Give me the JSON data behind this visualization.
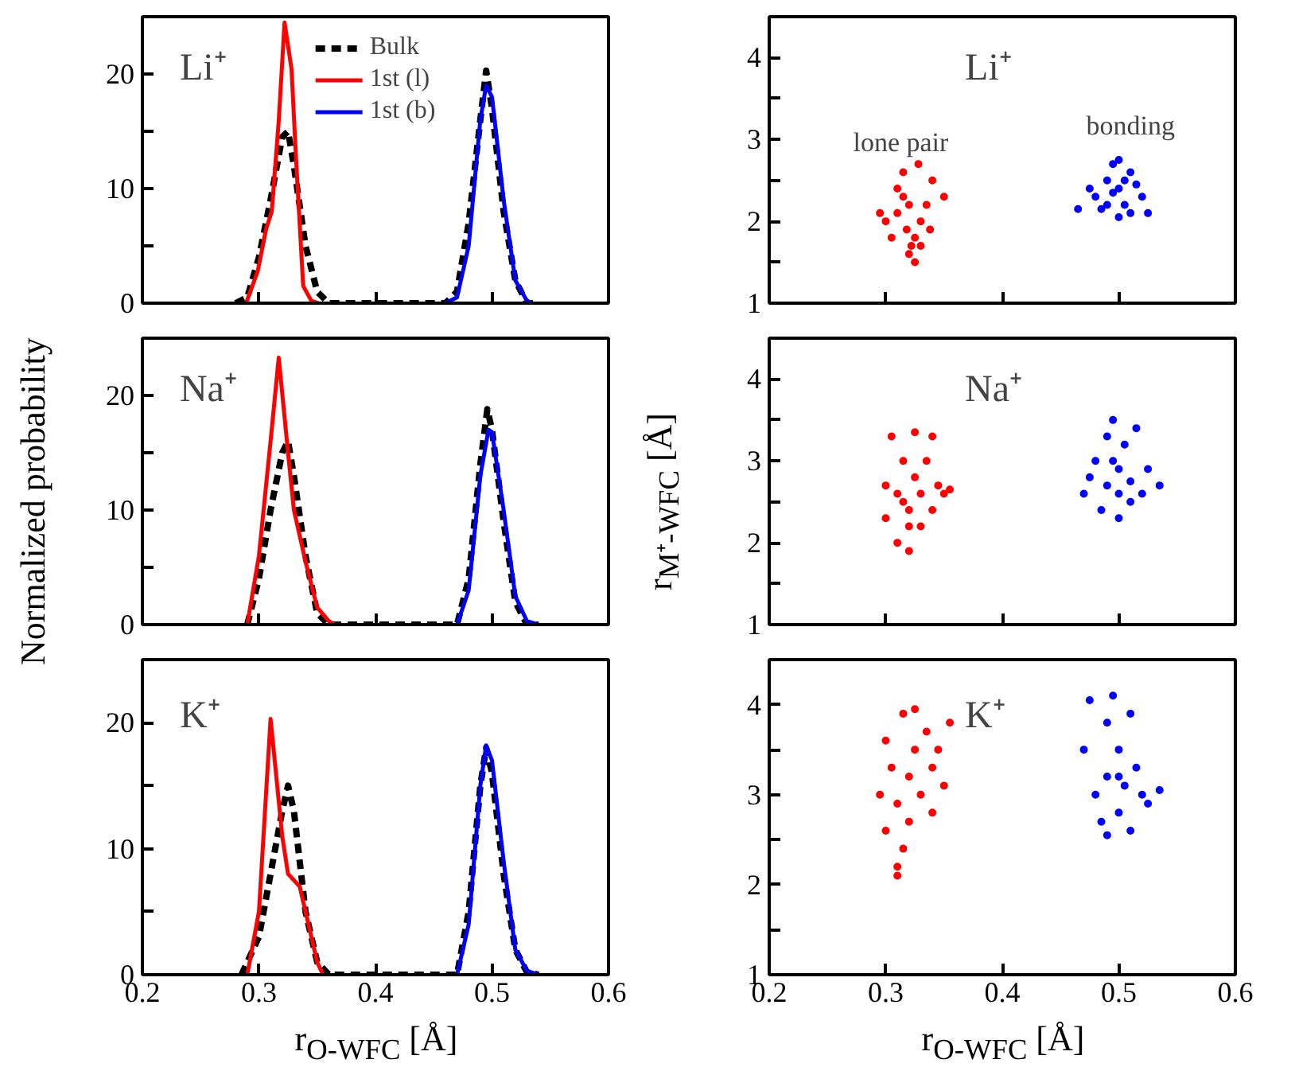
{
  "chart_data": [
    {
      "type": "line",
      "xlim": [
        0.2,
        0.6
      ],
      "ylim": [
        0,
        25
      ],
      "xticks": [
        0.2,
        0.3,
        0.4,
        0.5,
        0.6
      ],
      "yticks": [
        0,
        {
          "value": 5,
          "label": null
        },
        10,
        {
          "value": 15,
          "label": null
        },
        20
      ],
      "tick_labels": "y",
      "grid": false,
      "legend": "top",
      "annotations": [
        "Li⁺"
      ],
      "series": [
        {
          "name": "Bulk",
          "color": "#000000",
          "line_style": "dashed",
          "x": [
            0.28,
            0.29,
            0.3,
            0.31,
            0.32,
            0.325,
            0.33,
            0.34,
            0.35,
            0.36,
            0.37,
            0.46,
            0.47,
            0.48,
            0.49,
            0.495,
            0.5,
            0.51,
            0.52,
            0.53,
            0.54
          ],
          "values": [
            0,
            0.5,
            4,
            9,
            14.5,
            15,
            12,
            5,
            1,
            0,
            0,
            0,
            1,
            7,
            16,
            20.3,
            17,
            8,
            2,
            0,
            0
          ]
        },
        {
          "name": "1st (l)",
          "color": "#ff0000",
          "line_style": "solid",
          "x": [
            0.289,
            0.299,
            0.306,
            0.311,
            0.317,
            0.322,
            0.328,
            0.332,
            0.338,
            0.345,
            0.351
          ],
          "values": [
            0,
            2.8,
            6.4,
            8,
            15.9,
            24.5,
            20.4,
            12.3,
            1.5,
            0.2,
            0
          ]
        },
        {
          "name": "1st (b)",
          "color": "#0000ff",
          "line_style": "solid",
          "x": [
            0.46,
            0.47,
            0.48,
            0.49,
            0.495,
            0.5,
            0.51,
            0.52,
            0.53,
            0.535
          ],
          "values": [
            0,
            0.5,
            5,
            16,
            19,
            18,
            9,
            2,
            0.2,
            0
          ]
        }
      ]
    },
    {
      "type": "scatter",
      "xlim": [
        0.2,
        0.6
      ],
      "ylim": [
        1,
        4.5
      ],
      "xticks": [
        0.2,
        0.3,
        0.4,
        0.5,
        0.6
      ],
      "yticks": [
        1,
        {
          "value": 1.5,
          "label": null
        },
        2,
        {
          "value": 2.5,
          "label": null
        },
        3,
        {
          "value": 3.5,
          "label": null
        },
        4
      ],
      "tick_labels": "y",
      "grid": false,
      "marker": "circle",
      "annotations": [
        "Li⁺",
        "lone pair",
        "bonding"
      ],
      "series": [
        {
          "color": "#ff0000",
          "x": [
            0.3,
            0.31,
            0.315,
            0.32,
            0.325,
            0.32,
            0.33,
            0.335,
            0.34,
            0.328,
            0.305,
            0.31,
            0.318,
            0.322,
            0.33,
            0.295,
            0.325,
            0.35,
            0.315,
            0.338
          ],
          "values": [
            2.0,
            2.4,
            2.6,
            2.2,
            1.8,
            1.6,
            1.7,
            2.2,
            2.5,
            2.7,
            1.8,
            2.1,
            1.9,
            1.7,
            2.0,
            2.1,
            1.5,
            2.3,
            2.3,
            1.9
          ]
        },
        {
          "color": "#0000ff",
          "x": [
            0.465,
            0.48,
            0.49,
            0.495,
            0.5,
            0.505,
            0.51,
            0.52,
            0.525,
            0.5,
            0.485,
            0.51,
            0.515,
            0.49,
            0.5,
            0.475,
            0.495,
            0.505
          ],
          "values": [
            2.15,
            2.3,
            2.5,
            2.7,
            2.4,
            2.2,
            2.1,
            2.3,
            2.1,
            2.05,
            2.15,
            2.6,
            2.45,
            2.2,
            2.75,
            2.4,
            2.35,
            2.5
          ]
        }
      ]
    },
    {
      "type": "line",
      "xlim": [
        0.2,
        0.6
      ],
      "ylim": [
        0,
        25
      ],
      "xticks": [
        0.2,
        0.3,
        0.4,
        0.5,
        0.6
      ],
      "yticks": [
        0,
        {
          "value": 5,
          "label": null
        },
        10,
        {
          "value": 15,
          "label": null
        },
        20
      ],
      "tick_labels": "y",
      "grid": false,
      "ylabel": "Normalized probability",
      "annotations": [
        "Na⁺"
      ],
      "series": [
        {
          "color": "#000000",
          "line_style": "dashed",
          "x": [
            0.29,
            0.3,
            0.31,
            0.32,
            0.325,
            0.33,
            0.34,
            0.35,
            0.36,
            0.47,
            0.48,
            0.49,
            0.496,
            0.5,
            0.51,
            0.52,
            0.53,
            0.54
          ],
          "values": [
            0,
            4,
            10,
            15,
            16,
            13,
            6,
            1,
            0,
            0,
            4,
            14,
            18.8,
            17,
            9,
            2,
            0,
            0
          ]
        },
        {
          "color": "#ff0000",
          "line_style": "solid",
          "x": [
            0.29,
            0.3,
            0.31,
            0.317,
            0.325,
            0.33,
            0.34,
            0.35,
            0.36,
            0.365
          ],
          "values": [
            0,
            6,
            16,
            23.3,
            15,
            10,
            5.5,
            1.5,
            0.3,
            0
          ]
        },
        {
          "color": "#0000ff",
          "line_style": "solid",
          "x": [
            0.47,
            0.48,
            0.49,
            0.497,
            0.5,
            0.51,
            0.52,
            0.53,
            0.54
          ],
          "values": [
            0,
            3,
            13,
            17,
            16.8,
            10,
            2.5,
            0.3,
            0
          ]
        }
      ]
    },
    {
      "type": "scatter",
      "xlim": [
        0.2,
        0.6
      ],
      "ylim": [
        1,
        4.5
      ],
      "xticks": [
        0.2,
        0.3,
        0.4,
        0.5,
        0.6
      ],
      "yticks": [
        1,
        {
          "value": 1.5,
          "label": null
        },
        2,
        {
          "value": 2.5,
          "label": null
        },
        3,
        {
          "value": 3.5,
          "label": null
        },
        4
      ],
      "tick_labels": "y",
      "grid": false,
      "marker": "circle",
      "ylabel": "r$_{M⁺-WFC}$ [Å]",
      "annotations": [
        "Na⁺"
      ],
      "series": [
        {
          "color": "#ff0000",
          "x": [
            0.3,
            0.3,
            0.305,
            0.31,
            0.315,
            0.315,
            0.32,
            0.32,
            0.325,
            0.325,
            0.33,
            0.33,
            0.335,
            0.34,
            0.345,
            0.35,
            0.355,
            0.31,
            0.32,
            0.34
          ],
          "values": [
            2.7,
            2.3,
            3.3,
            2.0,
            2.5,
            3.0,
            1.9,
            2.4,
            2.8,
            3.35,
            2.2,
            2.6,
            3.0,
            2.4,
            2.7,
            2.6,
            2.65,
            2.6,
            2.2,
            3.3
          ]
        },
        {
          "color": "#0000ff",
          "x": [
            0.47,
            0.475,
            0.48,
            0.485,
            0.49,
            0.49,
            0.495,
            0.5,
            0.5,
            0.505,
            0.51,
            0.51,
            0.515,
            0.52,
            0.525,
            0.535,
            0.5,
            0.495
          ],
          "values": [
            2.6,
            2.8,
            3.0,
            2.4,
            3.3,
            2.7,
            3.5,
            2.3,
            2.9,
            3.2,
            2.5,
            2.75,
            3.4,
            2.6,
            2.9,
            2.7,
            2.6,
            3.0
          ]
        }
      ]
    },
    {
      "type": "line",
      "xlim": [
        0.2,
        0.6
      ],
      "ylim": [
        0,
        25
      ],
      "xticks": [
        0.2,
        0.3,
        0.4,
        0.5,
        0.6
      ],
      "yticks": [
        0,
        {
          "value": 5,
          "label": null
        },
        10,
        {
          "value": 15,
          "label": null
        },
        20
      ],
      "grid": false,
      "xlabel": "r$_{O-WFC}$ [Å]",
      "annotations": [
        "K⁺"
      ],
      "series": [
        {
          "color": "#000000",
          "line_style": "dashed",
          "x": [
            0.285,
            0.3,
            0.31,
            0.32,
            0.325,
            0.33,
            0.34,
            0.35,
            0.36,
            0.47,
            0.48,
            0.49,
            0.495,
            0.5,
            0.51,
            0.52,
            0.53,
            0.54
          ],
          "values": [
            0,
            3,
            8,
            13,
            15,
            13,
            5,
            1,
            0,
            0,
            5,
            15,
            18,
            16,
            8,
            2,
            0.2,
            0
          ]
        },
        {
          "color": "#ff0000",
          "line_style": "solid",
          "x": [
            0.29,
            0.3,
            0.31,
            0.32,
            0.325,
            0.335,
            0.34,
            0.35,
            0.355
          ],
          "values": [
            0,
            5,
            20.3,
            11,
            8,
            7,
            5,
            1,
            0
          ]
        },
        {
          "color": "#0000ff",
          "line_style": "solid",
          "x": [
            0.47,
            0.48,
            0.49,
            0.495,
            0.5,
            0.51,
            0.52,
            0.53,
            0.54
          ],
          "values": [
            0,
            4,
            15,
            18.2,
            17,
            9,
            2,
            0.3,
            0
          ]
        }
      ]
    },
    {
      "type": "scatter",
      "xlim": [
        0.2,
        0.6
      ],
      "ylim": [
        1,
        4.5
      ],
      "xticks": [
        0.2,
        0.3,
        0.4,
        0.5,
        0.6
      ],
      "yticks": [
        1,
        {
          "value": 1.5,
          "label": null
        },
        2,
        {
          "value": 2.5,
          "label": null
        },
        3,
        {
          "value": 3.5,
          "label": null
        },
        4
      ],
      "grid": false,
      "marker": "circle",
      "xlabel": "r$_{O-WFC}$ [Å]",
      "annotations": [
        "K⁺"
      ],
      "series": [
        {
          "color": "#ff0000",
          "x": [
            0.295,
            0.3,
            0.3,
            0.305,
            0.31,
            0.31,
            0.315,
            0.315,
            0.32,
            0.32,
            0.325,
            0.325,
            0.33,
            0.335,
            0.34,
            0.34,
            0.345,
            0.35,
            0.355,
            0.31
          ],
          "values": [
            3.0,
            3.6,
            2.6,
            3.3,
            2.2,
            2.9,
            3.9,
            2.4,
            3.2,
            2.7,
            3.95,
            3.5,
            3.0,
            3.7,
            3.3,
            2.8,
            3.5,
            3.1,
            3.8,
            2.1
          ]
        },
        {
          "color": "#0000ff",
          "x": [
            0.47,
            0.475,
            0.48,
            0.485,
            0.49,
            0.49,
            0.495,
            0.5,
            0.5,
            0.505,
            0.51,
            0.51,
            0.515,
            0.52,
            0.525,
            0.535,
            0.5,
            0.49
          ],
          "values": [
            3.5,
            4.05,
            3.0,
            2.7,
            3.8,
            3.2,
            4.1,
            2.8,
            3.5,
            3.1,
            3.9,
            2.6,
            3.3,
            3.0,
            2.9,
            3.05,
            3.2,
            2.55
          ]
        }
      ]
    }
  ]
}
